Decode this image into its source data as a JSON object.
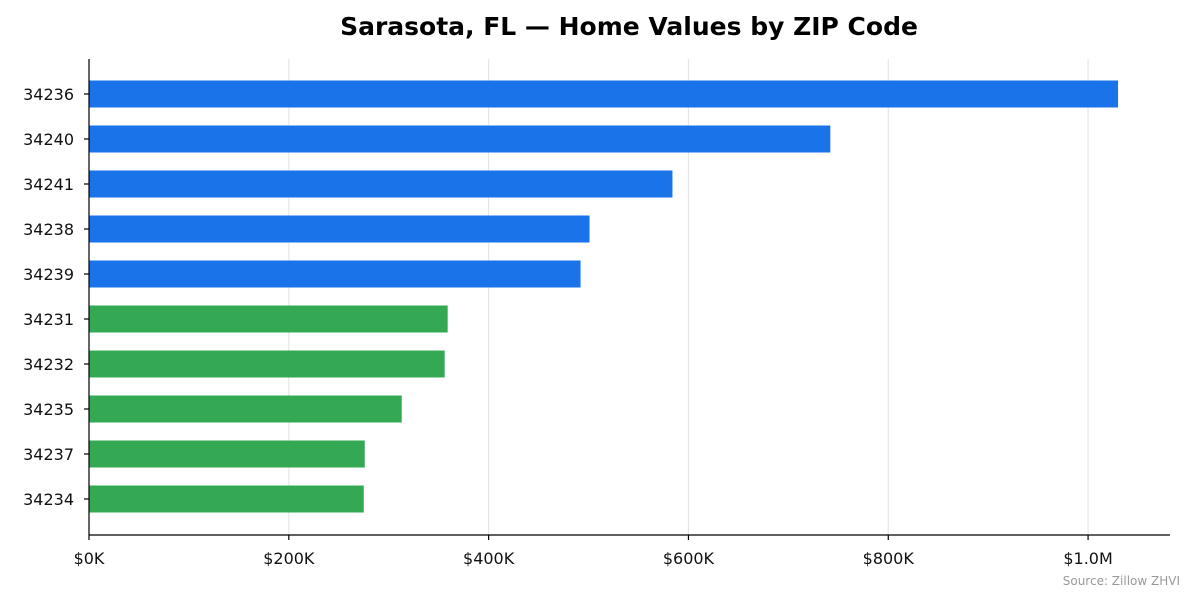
{
  "chart_data": {
    "type": "bar",
    "orientation": "horizontal",
    "title": "Sarasota, FL — Home Values by ZIP Code",
    "source": "Source: Zillow ZHVI",
    "categories": [
      "34236",
      "34240",
      "34241",
      "34238",
      "34239",
      "34231",
      "34232",
      "34235",
      "34237",
      "34234"
    ],
    "values": [
      1030000,
      742000,
      584000,
      501000,
      492000,
      359000,
      356000,
      313000,
      276000,
      275000
    ],
    "bar_colors": [
      "#1a73e8",
      "#1a73e8",
      "#1a73e8",
      "#1a73e8",
      "#1a73e8",
      "#34a853",
      "#34a853",
      "#34a853",
      "#34a853",
      "#34a853"
    ],
    "xlim": [
      0,
      1082000
    ],
    "x_ticks": [
      0,
      200000,
      400000,
      600000,
      800000,
      1000000
    ],
    "x_tick_labels": [
      "$0K",
      "$200K",
      "$400K",
      "$600K",
      "$800K",
      "$1.0M"
    ],
    "xlabel": "",
    "ylabel": "",
    "grid": "vertical",
    "legend": "none"
  }
}
